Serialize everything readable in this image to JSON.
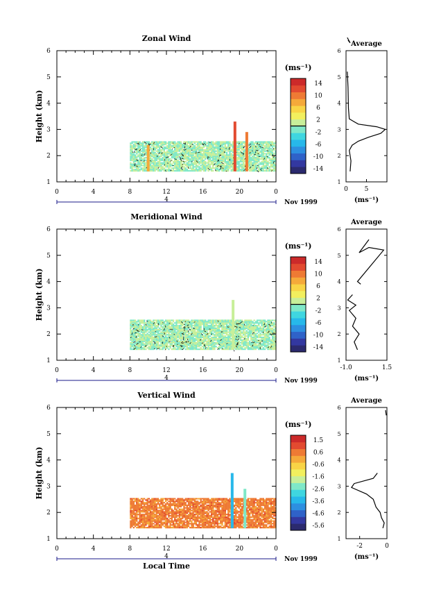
{
  "colors": {
    "ink": "#000000",
    "colormap": [
      "#2b2a6e",
      "#3338a0",
      "#2f62c8",
      "#2d8fe0",
      "#27b8ea",
      "#3fd6e0",
      "#7fe8c8",
      "#c8ef9a",
      "#f2ef5e",
      "#f9d446",
      "#f5a93a",
      "#ee7a34",
      "#e24a30",
      "#cc2a2a"
    ]
  },
  "shared": {
    "x_ticks": [
      "0",
      "4",
      "8",
      "12",
      "16",
      "20",
      "0"
    ],
    "y_ticks": [
      "1",
      "2",
      "3",
      "4",
      "5",
      "6"
    ],
    "ylabel": "Height (km)",
    "date_day": "4",
    "date_label": "Nov 1999",
    "cbar_unit": "(ms⁻¹)",
    "avg_title": "Average",
    "avg_xlabel": "(ms⁻¹)",
    "xlabel": "Local Time"
  },
  "chart_data": [
    {
      "type": "heatmap",
      "title": "Zonal Wind",
      "xlabel": "",
      "ylabel": "Height (km)",
      "xlim": [
        0,
        24
      ],
      "ylim": [
        1,
        6
      ],
      "colorbar": {
        "ticks": [
          "14",
          "10",
          "6",
          "2",
          "-2",
          "-6",
          "-10",
          "-14"
        ],
        "range": [
          -16,
          16
        ],
        "contour_level": 0
      },
      "data_region": {
        "x": [
          8,
          24
        ],
        "y": [
          1.4,
          2.5
        ]
      },
      "tall_columns": [
        {
          "x": 19.5,
          "y_top": 3.3,
          "value": 13
        },
        {
          "x": 20.8,
          "y_top": 2.9,
          "value": 10
        },
        {
          "x": 10.0,
          "y_top": 2.4,
          "value": 8
        }
      ],
      "average_profile": {
        "xlim": [
          0,
          10
        ],
        "xticks": [
          "0",
          "5"
        ],
        "points": [
          [
            1.0,
            1.4
          ],
          [
            1.2,
            1.8
          ],
          [
            0.8,
            2.2
          ],
          [
            1.5,
            2.4
          ],
          [
            3.0,
            2.55
          ],
          [
            5.5,
            2.7
          ],
          [
            8.5,
            2.85
          ],
          [
            9.6,
            3.0
          ],
          [
            7.5,
            3.1
          ],
          [
            3.0,
            3.2
          ],
          [
            0.8,
            3.4
          ],
          [
            0.6,
            3.8
          ],
          [
            0.5,
            4.6
          ],
          [
            0.3,
            5.2
          ]
        ],
        "extra_points": [
          [
            0.5,
            6.4
          ],
          [
            1.0,
            6.3
          ],
          [
            0.3,
            6.5
          ]
        ]
      }
    },
    {
      "type": "heatmap",
      "title": "Meridional Wind",
      "xlabel": "",
      "ylabel": "Height (km)",
      "xlim": [
        0,
        24
      ],
      "ylim": [
        1,
        6
      ],
      "colorbar": {
        "ticks": [
          "14",
          "10",
          "6",
          "2",
          "-2",
          "-6",
          "-10",
          "-14"
        ],
        "range": [
          -16,
          16
        ],
        "contour_level": 0
      },
      "data_region": {
        "x": [
          8,
          24
        ],
        "y": [
          1.4,
          2.5
        ]
      },
      "tall_columns": [
        {
          "x": 19.3,
          "y_top": 3.3,
          "value": 1
        }
      ],
      "average_profile": {
        "xlim": [
          -1.0,
          1.5
        ],
        "xticks": [
          "-1.0",
          "1.5"
        ],
        "points": [
          [
            -0.3,
            1.4
          ],
          [
            -0.5,
            1.7
          ],
          [
            -0.2,
            2.0
          ],
          [
            -0.6,
            2.3
          ],
          [
            -0.4,
            2.6
          ],
          [
            -0.8,
            2.9
          ],
          [
            -0.4,
            3.1
          ],
          [
            -0.9,
            3.3
          ],
          [
            -0.6,
            3.5
          ]
        ],
        "extra_points": [
          [
            -0.1,
            3.9
          ],
          [
            -0.3,
            4.0
          ],
          [
            1.3,
            5.2
          ],
          [
            0.4,
            5.3
          ],
          [
            -0.2,
            5.1
          ],
          [
            0.4,
            5.6
          ]
        ]
      }
    },
    {
      "type": "heatmap",
      "title": "Vertical Wind",
      "xlabel": "Local Time",
      "ylabel": "Height (km)",
      "xlim": [
        0,
        24
      ],
      "ylim": [
        1,
        6
      ],
      "colorbar": {
        "ticks": [
          "1.5",
          "0.6",
          "-0.6",
          "-1.6",
          "-2.6",
          "-3.6",
          "-4.6",
          "-5.6"
        ],
        "range": [
          -6.1,
          2.0
        ],
        "contour_level": null
      },
      "data_region": {
        "x": [
          8,
          24
        ],
        "y": [
          1.4,
          2.5
        ]
      },
      "tall_columns": [
        {
          "x": 19.2,
          "y_top": 3.5,
          "value": -3.6
        },
        {
          "x": 20.6,
          "y_top": 2.9,
          "value": -2.6
        }
      ],
      "average_profile": {
        "xlim": [
          -3,
          0
        ],
        "xticks": [
          "-2",
          "0"
        ],
        "points": [
          [
            -0.3,
            1.4
          ],
          [
            -0.2,
            1.6
          ],
          [
            -0.4,
            1.8
          ],
          [
            -0.5,
            2.0
          ],
          [
            -0.8,
            2.2
          ],
          [
            -1.0,
            2.5
          ],
          [
            -1.5,
            2.7
          ],
          [
            -2.6,
            2.95
          ],
          [
            -2.4,
            3.1
          ],
          [
            -1.0,
            3.3
          ],
          [
            -0.7,
            3.5
          ]
        ],
        "extra_points": [
          [
            -0.05,
            5.7
          ],
          [
            -0.1,
            5.9
          ]
        ]
      }
    }
  ]
}
